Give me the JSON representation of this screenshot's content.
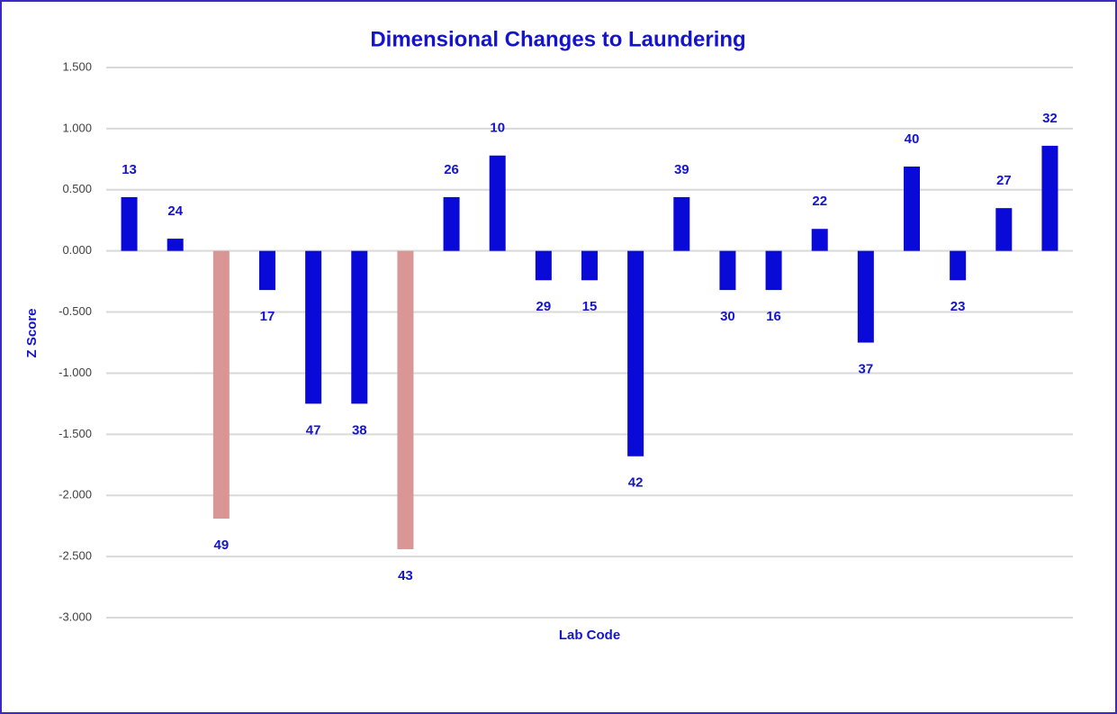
{
  "chart_data": {
    "type": "bar",
    "title": "Dimensional Changes to Laundering",
    "y_label": "Z Score",
    "x_label": "Lab Code",
    "categories": [
      "13",
      "24",
      "49",
      "17",
      "47",
      "38",
      "43",
      "26",
      "10",
      "29",
      "15",
      "42",
      "39",
      "30",
      "16",
      "22",
      "37",
      "40",
      "23",
      "27",
      "32"
    ],
    "values": [
      0.44,
      0.1,
      -2.19,
      -0.32,
      -1.25,
      -1.25,
      -2.44,
      0.44,
      0.78,
      -0.24,
      -0.24,
      -1.68,
      0.44,
      -0.32,
      -0.32,
      0.18,
      -0.75,
      0.69,
      -0.24,
      0.35,
      0.86
    ],
    "colors": [
      "#0a0ad8",
      "#0a0ad8",
      "#d99694",
      "#0a0ad8",
      "#0a0ad8",
      "#0a0ad8",
      "#d99694",
      "#0a0ad8",
      "#0a0ad8",
      "#0a0ad8",
      "#0a0ad8",
      "#0a0ad8",
      "#0a0ad8",
      "#0a0ad8",
      "#0a0ad8",
      "#0a0ad8",
      "#0a0ad8",
      "#0a0ad8",
      "#0a0ad8",
      "#0a0ad8",
      "#0a0ad8"
    ],
    "ylim": [
      -3,
      1.5
    ],
    "yticks": [
      {
        "value": 1.5,
        "label": "1.500"
      },
      {
        "value": 1,
        "label": "1.000"
      },
      {
        "value": 0.5,
        "label": "0.500"
      },
      {
        "value": 0,
        "label": "0.000"
      },
      {
        "value": -0.5,
        "label": "-0.500"
      },
      {
        "value": -1,
        "label": "-1.000"
      },
      {
        "value": -1.5,
        "label": "-1.500"
      },
      {
        "value": -2,
        "label": "-2.000"
      },
      {
        "value": -2.5,
        "label": "-2.500"
      },
      {
        "value": -3,
        "label": "-3.000"
      }
    ],
    "grid": true
  }
}
